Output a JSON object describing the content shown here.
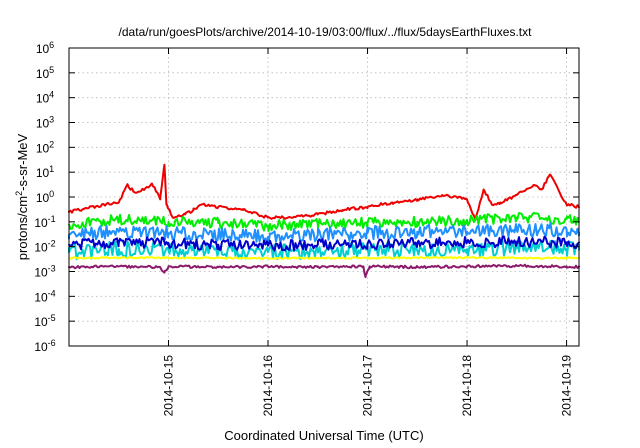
{
  "chart_data": {
    "type": "line",
    "title": "/data/run/goesPlots/archive/2014-10-19/03:00/flux/../flux/5daysEarthFluxes.txt",
    "xlabel": "Coordinated Universal Time (UTC)",
    "ylabel": {
      "base": "protons/cm",
      "sup": "2",
      "rest": "-s-sr-MeV"
    },
    "y_scale": "log",
    "ylim": [
      1e-06,
      1000000
    ],
    "y_ticks": [
      {
        "base": "10",
        "exp": "6"
      },
      {
        "base": "10",
        "exp": "5"
      },
      {
        "base": "10",
        "exp": "4"
      },
      {
        "base": "10",
        "exp": "3"
      },
      {
        "base": "10",
        "exp": "2"
      },
      {
        "base": "10",
        "exp": "1"
      },
      {
        "base": "10",
        "exp": "0"
      },
      {
        "base": "10",
        "exp": "-1"
      },
      {
        "base": "10",
        "exp": "-2"
      },
      {
        "base": "10",
        "exp": "-3"
      },
      {
        "base": "10",
        "exp": "-4"
      },
      {
        "base": "10",
        "exp": "-5"
      },
      {
        "base": "10",
        "exp": "-6"
      }
    ],
    "xlim": [
      "2014-10-14T00:00",
      "2014-10-19T03:00"
    ],
    "x_ticks": [
      "2014-10-15",
      "2014-10-16",
      "2014-10-17",
      "2014-10-18",
      "2014-10-19"
    ],
    "grid": true,
    "legend": false,
    "series": [
      {
        "color": "#ee0000",
        "x": [
          "2014-10-14T00:00",
          "2014-10-14T06:00",
          "2014-10-14T12:00",
          "2014-10-14T14:00",
          "2014-10-14T16:00",
          "2014-10-14T18:00",
          "2014-10-14T20:00",
          "2014-10-14T22:00",
          "2014-10-14T23:00",
          "2014-10-14T23:30",
          "2014-10-15T01:00",
          "2014-10-15T04:00",
          "2014-10-15T06:00",
          "2014-10-15T08:00",
          "2014-10-15T12:00",
          "2014-10-15T18:00",
          "2014-10-16T00:00",
          "2014-10-16T06:00",
          "2014-10-16T12:00",
          "2014-10-16T18:00",
          "2014-10-17T00:00",
          "2014-10-17T06:00",
          "2014-10-17T12:00",
          "2014-10-17T18:00",
          "2014-10-18T00:00",
          "2014-10-18T02:00",
          "2014-10-18T04:00",
          "2014-10-18T06:00",
          "2014-10-18T08:00",
          "2014-10-18T12:00",
          "2014-10-18T16:00",
          "2014-10-18T18:00",
          "2014-10-18T20:00",
          "2014-10-18T22:00",
          "2014-10-19T00:00",
          "2014-10-19T03:00"
        ],
        "y": [
          0.25,
          0.4,
          0.6,
          3,
          1.5,
          2,
          3.5,
          0.8,
          20,
          0.5,
          0.15,
          0.2,
          0.3,
          0.5,
          0.4,
          0.3,
          0.15,
          0.15,
          0.2,
          0.3,
          0.4,
          0.6,
          0.8,
          1.2,
          0.8,
          0.12,
          2,
          0.5,
          0.6,
          1.2,
          3,
          2,
          8,
          2,
          0.5,
          0.4
        ]
      },
      {
        "color": "#00ee00",
        "x": [
          "2014-10-14T00:00",
          "2014-10-14T12:00",
          "2014-10-15T00:00",
          "2014-10-15T12:00",
          "2014-10-16T00:00",
          "2014-10-16T12:00",
          "2014-10-17T00:00",
          "2014-10-17T12:00",
          "2014-10-18T00:00",
          "2014-10-18T12:00",
          "2014-10-19T00:00",
          "2014-10-19T03:00"
        ],
        "y": [
          0.08,
          0.12,
          0.1,
          0.09,
          0.07,
          0.08,
          0.09,
          0.1,
          0.12,
          0.15,
          0.13,
          0.1
        ]
      },
      {
        "color": "#1e90ff",
        "x": [
          "2014-10-14T00:00",
          "2014-10-14T12:00",
          "2014-10-15T00:00",
          "2014-10-15T12:00",
          "2014-10-16T00:00",
          "2014-10-16T12:00",
          "2014-10-17T00:00",
          "2014-10-17T12:00",
          "2014-10-18T00:00",
          "2014-10-18T12:00",
          "2014-10-19T00:00",
          "2014-10-19T03:00"
        ],
        "y": [
          0.03,
          0.04,
          0.035,
          0.03,
          0.025,
          0.03,
          0.035,
          0.04,
          0.04,
          0.045,
          0.05,
          0.04
        ]
      },
      {
        "color": "#00ced1",
        "x": [
          "2014-10-14T00:00",
          "2014-10-14T12:00",
          "2014-10-15T00:00",
          "2014-10-15T12:00",
          "2014-10-16T00:00",
          "2014-10-16T12:00",
          "2014-10-17T00:00",
          "2014-10-17T12:00",
          "2014-10-18T00:00",
          "2014-10-18T12:00",
          "2014-10-19T00:00",
          "2014-10-19T03:00"
        ],
        "y": [
          0.006,
          0.008,
          0.007,
          0.006,
          0.006,
          0.007,
          0.008,
          0.007,
          0.008,
          0.009,
          0.008,
          0.007
        ]
      },
      {
        "color": "#0000cd",
        "x": [
          "2014-10-14T00:00",
          "2014-10-14T12:00",
          "2014-10-15T00:00",
          "2014-10-15T12:00",
          "2014-10-16T00:00",
          "2014-10-16T12:00",
          "2014-10-17T00:00",
          "2014-10-17T12:00",
          "2014-10-18T00:00",
          "2014-10-18T12:00",
          "2014-10-19T00:00",
          "2014-10-19T03:00"
        ],
        "y": [
          0.012,
          0.015,
          0.014,
          0.012,
          0.011,
          0.012,
          0.013,
          0.014,
          0.015,
          0.016,
          0.015,
          0.014
        ]
      },
      {
        "color": "#ffff00",
        "x": [
          "2014-10-14T00:00",
          "2014-10-15T00:00",
          "2014-10-16T00:00",
          "2014-10-17T00:00",
          "2014-10-18T00:00",
          "2014-10-19T00:00",
          "2014-10-19T03:00"
        ],
        "y": [
          0.0035,
          0.0036,
          0.0034,
          0.0035,
          0.0036,
          0.0035,
          0.0035
        ]
      },
      {
        "color": "#8b1a6b",
        "x": [
          "2014-10-14T00:00",
          "2014-10-14T12:00",
          "2014-10-14T22:00",
          "2014-10-14T23:00",
          "2014-10-15T00:00",
          "2014-10-15T12:00",
          "2014-10-16T00:00",
          "2014-10-16T12:00",
          "2014-10-16T23:00",
          "2014-10-16T23:30",
          "2014-10-17T00:30",
          "2014-10-17T12:00",
          "2014-10-18T00:00",
          "2014-10-18T12:00",
          "2014-10-19T00:00",
          "2014-10-19T03:00"
        ],
        "y": [
          0.0015,
          0.0016,
          0.0015,
          0.0009,
          0.0016,
          0.0015,
          0.0016,
          0.0015,
          0.0016,
          0.0006,
          0.0016,
          0.0015,
          0.0016,
          0.0017,
          0.0016,
          0.0015
        ]
      }
    ]
  }
}
